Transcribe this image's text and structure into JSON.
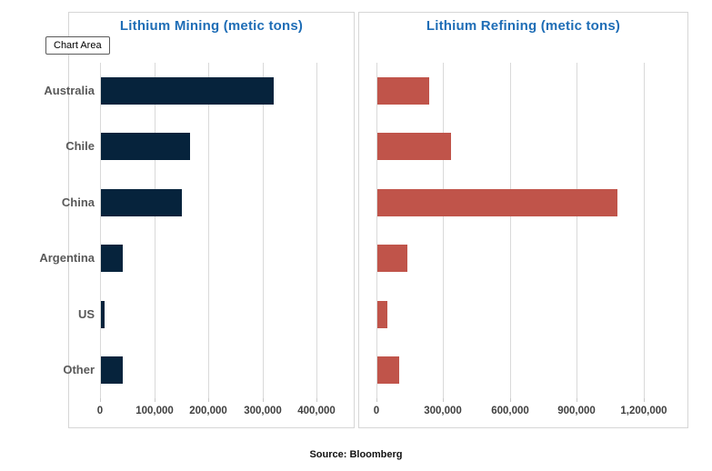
{
  "page": {
    "source_label": "Source: Bloomberg"
  },
  "tooltip": {
    "label": "Chart Area"
  },
  "colors": {
    "mining_bar": "#06233c",
    "refining_bar": "#c0544a",
    "title_blue": "#1e6db6",
    "gridline": "#d9d9d9",
    "category_label": "#595959",
    "axis_label": "#404040",
    "panel_border": "#d6d6d6"
  },
  "chart_data": [
    {
      "type": "bar",
      "orientation": "horizontal",
      "title": "Lithium Mining (metic tons)",
      "categories": [
        "Australia",
        "Chile",
        "China",
        "Argentina",
        "US",
        "Other"
      ],
      "values": [
        320000,
        165000,
        150000,
        40000,
        6000,
        40000
      ],
      "xticks": [
        0,
        100000,
        200000,
        300000,
        400000
      ],
      "xtick_labels": [
        "0",
        "100,000",
        "200,000",
        "300,000",
        "400,000"
      ],
      "xlim": [
        0,
        400000
      ],
      "xlabel": "",
      "ylabel": "",
      "bar_color": "#06233c",
      "grid": true,
      "legend": false
    },
    {
      "type": "bar",
      "orientation": "horizontal",
      "title": "Lithium Refining (metic tons)",
      "categories": [
        "Australia",
        "Chile",
        "China",
        "Argentina",
        "US",
        "Other"
      ],
      "values": [
        235000,
        330000,
        1080000,
        135000,
        45000,
        100000
      ],
      "xticks": [
        0,
        300000,
        600000,
        900000,
        1200000
      ],
      "xtick_labels": [
        "0",
        "300,000",
        "600,000",
        "900,000",
        "1,200,000"
      ],
      "xlim": [
        0,
        1200000
      ],
      "xlabel": "",
      "ylabel": "",
      "bar_color": "#c0544a",
      "grid": true,
      "legend": false
    }
  ]
}
